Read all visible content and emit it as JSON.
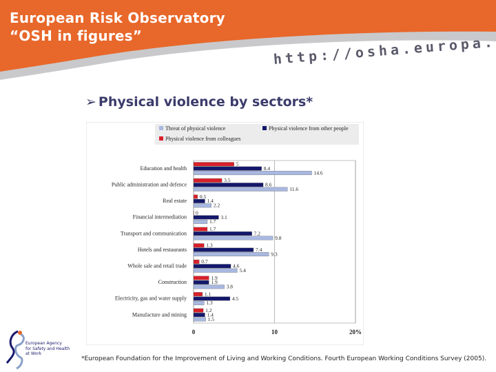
{
  "header": {
    "title_line1": "European Risk Observatory",
    "title_line2": "“OSH in figures”",
    "url": "http://osha.europa.eu"
  },
  "slide": {
    "subtitle": "Physical violence by sectors*",
    "footnote": "*European Foundation for the Improvement of Living and Working Conditions. Fourth European Working Conditions Survey (2005).",
    "logo_text": [
      "European Agency",
      "for Safety and Health",
      "at Work"
    ]
  },
  "chart_data": {
    "type": "bar",
    "orientation": "horizontal",
    "categories": [
      "Education and health",
      "Public administration and defence",
      "Real estate",
      "Financial intermediation",
      "Transport and communication",
      "Hotels and restaurants",
      "Whole sale and retail trade",
      "Construction",
      "Electricity, gas and water supply",
      "Manufacture and mining"
    ],
    "series": [
      {
        "name": "Physical violence from colleagues",
        "color": "#d8202a",
        "values": [
          5,
          3.5,
          0.5,
          0,
          1.7,
          1.3,
          0.7,
          1.9,
          1.1,
          1.2
        ]
      },
      {
        "name": "Physical violence from other people",
        "color": "#14186b",
        "values": [
          8.4,
          8.6,
          1.4,
          3.1,
          7.2,
          7.4,
          4.6,
          1.9,
          4.5,
          1.4
        ]
      },
      {
        "name": "Threat of physical violence",
        "color": "#a8b8e0",
        "values": [
          14.6,
          11.6,
          2.2,
          1.7,
          9.8,
          9.3,
          5.4,
          3.8,
          1.3,
          1.5
        ]
      }
    ],
    "value_labels": [
      [
        "5",
        "8.4",
        "14.6"
      ],
      [
        "3.5",
        "8.6",
        "11.6"
      ],
      [
        "0.5",
        "1.4",
        "2.2"
      ],
      [
        "0",
        "3.1",
        "1.7"
      ],
      [
        "1.7",
        "7.2",
        "9.8"
      ],
      [
        "1.3",
        "7.4",
        "9.3"
      ],
      [
        "0.7",
        "4.6",
        "5.4"
      ],
      [
        "1.9",
        "1.9",
        "3.8"
      ],
      [
        "1.1",
        "4.5",
        "1.3"
      ],
      [
        "1.2",
        "1.4",
        "1.5"
      ]
    ],
    "legend": [
      {
        "label": "Threat of physical violence",
        "color": "#a8b8e0"
      },
      {
        "label": "Physical violence from other people",
        "color": "#14186b"
      },
      {
        "label": "Physical violence from colleagues",
        "color": "#d8202a"
      }
    ],
    "legend_position": "top",
    "xlim": [
      0,
      20
    ],
    "xticks": [
      "0",
      "10",
      "20%"
    ],
    "xtick_values": [
      0,
      10,
      20
    ],
    "grid": true
  },
  "colors": {
    "header_orange": "#e8672a",
    "header_gray": "#c9c9cc",
    "subtitle": "#3b3b6b"
  }
}
